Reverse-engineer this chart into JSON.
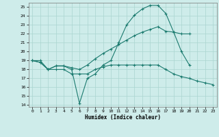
{
  "xlabel": "Humidex (Indice chaleur)",
  "xlim": [
    -0.5,
    23.5
  ],
  "ylim": [
    13.8,
    25.5
  ],
  "xticks": [
    0,
    1,
    2,
    3,
    4,
    5,
    6,
    7,
    8,
    9,
    10,
    11,
    12,
    13,
    14,
    15,
    16,
    17,
    18,
    19,
    20,
    21,
    22,
    23
  ],
  "yticks": [
    14,
    15,
    16,
    17,
    18,
    19,
    20,
    21,
    22,
    23,
    24,
    25
  ],
  "bg_color": "#ceecea",
  "grid_color": "#aad5d0",
  "line_color": "#1a7a6e",
  "line1_x": [
    0,
    1,
    2,
    3,
    4,
    5,
    6,
    7,
    8,
    9,
    10,
    11,
    12,
    13,
    14,
    15,
    16,
    17,
    18,
    19,
    20
  ],
  "line1_y": [
    19.0,
    18.8,
    18.0,
    18.4,
    18.4,
    18.0,
    14.2,
    17.0,
    17.5,
    18.5,
    19.0,
    21.0,
    23.0,
    24.1,
    24.8,
    25.2,
    25.2,
    24.3,
    22.2,
    20.0,
    18.5
  ],
  "line2_x": [
    0,
    1,
    2,
    3,
    4,
    5,
    6,
    7,
    8,
    9,
    10,
    11,
    12,
    13,
    14,
    15,
    16,
    17,
    18,
    19,
    20
  ],
  "line2_y": [
    19.0,
    19.0,
    18.0,
    18.4,
    18.4,
    18.2,
    18.0,
    18.5,
    19.2,
    19.8,
    20.3,
    20.8,
    21.3,
    21.8,
    22.2,
    22.5,
    22.8,
    22.3,
    22.2,
    22.0,
    22.0
  ],
  "line3_x": [
    0,
    1,
    2,
    3,
    4,
    5,
    6,
    7,
    8,
    9,
    10,
    11,
    12,
    13,
    14,
    15,
    16,
    17,
    18,
    19,
    20,
    21,
    22,
    23
  ],
  "line3_y": [
    19.0,
    18.8,
    18.0,
    18.0,
    18.0,
    17.5,
    17.5,
    17.5,
    18.0,
    18.3,
    18.5,
    18.5,
    18.5,
    18.5,
    18.5,
    18.5,
    18.5,
    18.0,
    17.5,
    17.2,
    17.0,
    16.7,
    16.5,
    16.3
  ]
}
